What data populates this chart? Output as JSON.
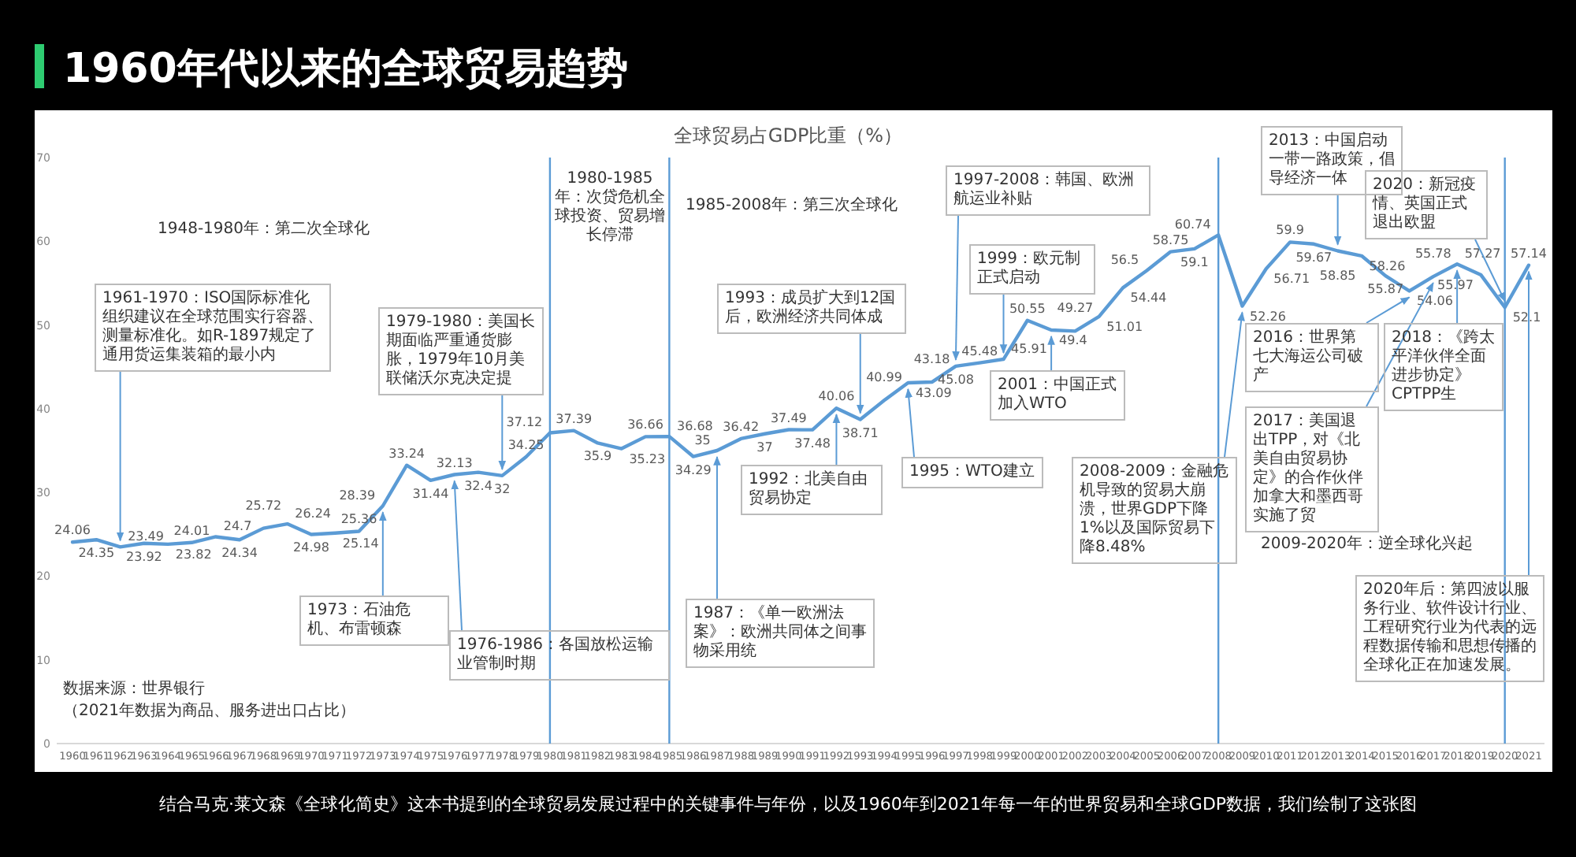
{
  "chart_data": {
    "type": "line",
    "title": "1960年代以来的全球贸易趋势",
    "subtitle": "全球贸易占GDP比重（%）",
    "categories": [
      "1960",
      "1961",
      "1962",
      "1963",
      "1964",
      "1965",
      "1966",
      "1967",
      "1968",
      "1969",
      "1970",
      "1971",
      "1972",
      "1973",
      "1974",
      "1975",
      "1976",
      "1977",
      "1978",
      "1979",
      "1980",
      "1981",
      "1982",
      "1983",
      "1984",
      "1985",
      "1986",
      "1987",
      "1988",
      "1989",
      "1990",
      "1991",
      "1992",
      "1993",
      "1994",
      "1995",
      "1996",
      "1997",
      "1998",
      "1999",
      "2000",
      "2001",
      "2002",
      "2003",
      "2004",
      "2005",
      "2006",
      "2007",
      "2008",
      "2009",
      "2010",
      "2011",
      "2012",
      "2013",
      "2014",
      "2015",
      "2016",
      "2017",
      "2018",
      "2019",
      "2020",
      "2021"
    ],
    "values": [
      24.06,
      24.35,
      23.49,
      23.92,
      23.82,
      24.01,
      24.7,
      24.34,
      25.72,
      26.24,
      24.98,
      25.14,
      25.36,
      28.39,
      33.24,
      31.44,
      32.13,
      32.4,
      32,
      34.25,
      37.12,
      37.39,
      35.9,
      35.23,
      36.66,
      36.68,
      34.29,
      35,
      36.42,
      37,
      37.49,
      37.48,
      40.06,
      38.71,
      40.99,
      43.09,
      43.18,
      45.08,
      45.48,
      45.91,
      50.55,
      49.4,
      49.27,
      51.01,
      54.44,
      56.5,
      58.75,
      59.1,
      60.74,
      52.26,
      56.71,
      59.9,
      59.67,
      58.85,
      58.26,
      55.87,
      54.06,
      55.78,
      57.27,
      55.97,
      52.1,
      57.14
    ],
    "color": "#5b9bd5",
    "data_labels": true,
    "ylim": [
      0,
      70
    ],
    "yticks": [
      0,
      10,
      20,
      30,
      40,
      50,
      60,
      70
    ],
    "ref_lines": [
      {
        "axis": "x",
        "value": "1980"
      },
      {
        "axis": "x",
        "value": "1985"
      },
      {
        "axis": "x",
        "value": "2008"
      },
      {
        "axis": "x",
        "value": "2020"
      }
    ],
    "annotations": [
      "结合马克·莱文森《全球化简史》这本书提到的全球贸易发展过程中的关键事件与年份，以及1960年到2021年每一年的世界贸易和全球GDP数据，我们绘制了这张图",
      "数据来源：世界银行",
      "（2021年数据为商品、服务进出口占比）",
      "1948-1980年：第二次全球化",
      "1980-1985年：次贷危机全球投资、贸易增长停滞",
      "1985-2008年：第三次全球化",
      "2009-2020年：逆全球化兴起",
      {
        "text": "1961-1970：ISO国际标准化组织建议在全球范围实行容器、测量标准化。如R-1897规定了通用货运集装箱的最小内",
        "x": "1962",
        "y": 23.49
      },
      {
        "text": "1973：石油危机、布雷顿森",
        "x": "1973",
        "y": 28.39
      },
      {
        "text": "1979-1980：美国长期面临严重通货膨胀，1979年10月美联储沃尔克决定提",
        "x": "1978",
        "y": 32
      },
      {
        "text": "1976-1986：各国放松运输业管制时期",
        "x": "1976",
        "y": 32.13
      },
      {
        "text": "1987：《单一欧洲法案》：欧洲共同体之间事物采用统",
        "x": "1987",
        "y": 35
      },
      {
        "text": "1992：北美自由贸易协定",
        "x": "1992",
        "y": 40.06
      },
      {
        "text": "1993：成员扩大到12国后，欧洲经济共同体成",
        "x": "1993",
        "y": 38.71
      },
      {
        "text": "1995：WTO建立",
        "x": "1995",
        "y": 43.09
      },
      {
        "text": "1997-2008：韩国、欧洲航运业补贴",
        "x": "1997",
        "y": 45.08
      },
      {
        "text": "1999：欧元制正式启动",
        "x": "1999",
        "y": 45.91
      },
      {
        "text": "2001：中国正式加入WTO",
        "x": "2001",
        "y": 49.4
      },
      {
        "text": "2008-2009：金融危机导致的贸易大崩溃，世界GDP下降 1%以及国际贸易下降8.48%",
        "x": "2009",
        "y": 52.26
      },
      {
        "text": "2013：中国启动一带一路政策，倡导经济一体",
        "x": "2013",
        "y": 58.85
      },
      {
        "text": "2016：世界第七大海运公司破产",
        "x": "2016",
        "y": 54.06
      },
      {
        "text": "2017：美国退出TPP，对《北美自由贸易协定》的合作伙伴加拿大和墨西哥实施了贸",
        "x": "2017",
        "y": 55.78
      },
      {
        "text": "2018：《跨太平洋伙伴全面进步协定》CPTPP生",
        "x": "2018",
        "y": 57.27
      },
      {
        "text": "2020：新冠疫情、英国正式退出欧盟",
        "x": "2020",
        "y": 52.1
      },
      {
        "text": "2020年后：第四波以服务行业、软件设计行业、工程研究行业为代表的远程数据传输和思想传播的全球化正在加速发展。",
        "x": "2021",
        "y": 57.14
      }
    ]
  }
}
